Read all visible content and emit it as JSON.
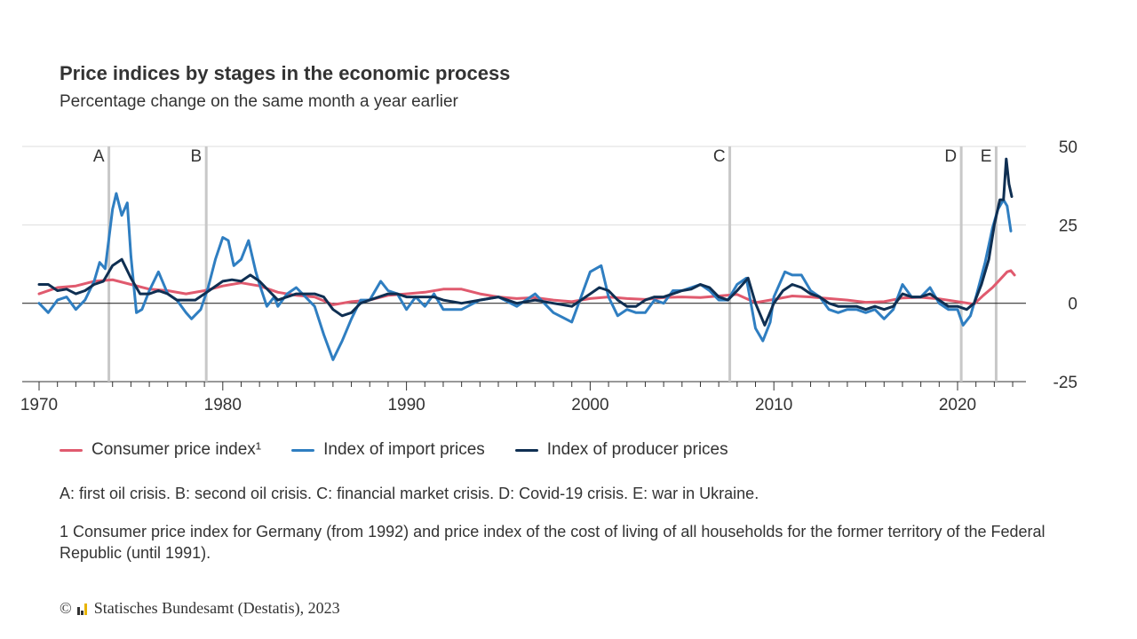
{
  "title": "Price indices by stages in the economic process",
  "subtitle": "Percentage change on the same month a year earlier",
  "legend": [
    {
      "label": "Consumer price index¹",
      "color": "#e05a6e"
    },
    {
      "label": "Index of import prices",
      "color": "#2f7ec1"
    },
    {
      "label": "Index of producer prices",
      "color": "#0f2f52"
    }
  ],
  "note": "A: first oil crisis. B: second oil crisis. C: financial market crisis. D: Covid-19 crisis. E: war in Ukraine.",
  "footnote": "1 Consumer price index for Germany (from 1992) and price index of the cost of living of all households for the former territory of the Federal Republic (until 1991).",
  "source": {
    "copyright": "©",
    "text": "Statisches Bundesamt (Destatis), 2023"
  },
  "chart_data": {
    "type": "line",
    "title": "Price indices by stages in the economic process",
    "ylabel": "Percentage change on the same month a year earlier",
    "xlim": [
      1970,
      2023
    ],
    "ylim": [
      -25,
      50
    ],
    "x_ticks": [
      1970,
      1980,
      1990,
      2000,
      2010,
      2020
    ],
    "y_ticks": [
      -25,
      0,
      25,
      50
    ],
    "events": [
      {
        "label": "A",
        "x": 1973.8
      },
      {
        "label": "B",
        "x": 1979.1
      },
      {
        "label": "C",
        "x": 2007.6
      },
      {
        "label": "D",
        "x": 2020.2
      },
      {
        "label": "E",
        "x": 2022.1
      }
    ],
    "series": [
      {
        "name": "Consumer price index¹",
        "color": "#e05a6e",
        "points": [
          [
            1970,
            3
          ],
          [
            1971,
            5
          ],
          [
            1972,
            5.5
          ],
          [
            1973,
            7
          ],
          [
            1974,
            7.5
          ],
          [
            1975,
            6
          ],
          [
            1976,
            4.5
          ],
          [
            1977,
            4
          ],
          [
            1978,
            3
          ],
          [
            1979,
            4
          ],
          [
            1980,
            5.5
          ],
          [
            1981,
            6.5
          ],
          [
            1982,
            5.5
          ],
          [
            1983,
            3.5
          ],
          [
            1984,
            2.5
          ],
          [
            1985,
            2
          ],
          [
            1986,
            -0.5
          ],
          [
            1987,
            0.5
          ],
          [
            1988,
            1
          ],
          [
            1989,
            2.5
          ],
          [
            1990,
            3
          ],
          [
            1991,
            3.5
          ],
          [
            1992,
            4.5
          ],
          [
            1993,
            4.5
          ],
          [
            1994,
            3
          ],
          [
            1995,
            2
          ],
          [
            1996,
            1.5
          ],
          [
            1997,
            1.8
          ],
          [
            1998,
            1
          ],
          [
            1999,
            0.5
          ],
          [
            2000,
            1.5
          ],
          [
            2001,
            2
          ],
          [
            2002,
            1.5
          ],
          [
            2003,
            1.2
          ],
          [
            2004,
            1.8
          ],
          [
            2005,
            2
          ],
          [
            2006,
            1.8
          ],
          [
            2007,
            2.3
          ],
          [
            2008,
            2.8
          ],
          [
            2009,
            0.2
          ],
          [
            2010,
            1.2
          ],
          [
            2011,
            2.3
          ],
          [
            2012,
            2
          ],
          [
            2013,
            1.5
          ],
          [
            2014,
            1
          ],
          [
            2015,
            0.3
          ],
          [
            2016,
            0.5
          ],
          [
            2017,
            1.7
          ],
          [
            2018,
            1.9
          ],
          [
            2019,
            1.4
          ],
          [
            2020,
            0.5
          ],
          [
            2020.9,
            -0.3
          ],
          [
            2021.4,
            2.5
          ],
          [
            2021.9,
            5
          ],
          [
            2022.3,
            7.5
          ],
          [
            2022.7,
            10
          ],
          [
            2022.9,
            10.4
          ],
          [
            2023.1,
            9
          ]
        ]
      },
      {
        "name": "Index of import prices",
        "color": "#2f7ec1",
        "points": [
          [
            1970,
            0
          ],
          [
            1970.5,
            -3
          ],
          [
            1971,
            1
          ],
          [
            1971.5,
            2
          ],
          [
            1972,
            -2
          ],
          [
            1972.5,
            1
          ],
          [
            1973,
            7
          ],
          [
            1973.3,
            13
          ],
          [
            1973.6,
            11
          ],
          [
            1974,
            30
          ],
          [
            1974.2,
            35
          ],
          [
            1974.5,
            28
          ],
          [
            1974.8,
            32
          ],
          [
            1975,
            15
          ],
          [
            1975.3,
            -3
          ],
          [
            1975.6,
            -2
          ],
          [
            1976,
            4
          ],
          [
            1976.5,
            10
          ],
          [
            1977,
            3
          ],
          [
            1977.5,
            1
          ],
          [
            1978,
            -3
          ],
          [
            1978.3,
            -5
          ],
          [
            1978.8,
            -2
          ],
          [
            1979.2,
            5
          ],
          [
            1979.6,
            14
          ],
          [
            1980,
            21
          ],
          [
            1980.3,
            20
          ],
          [
            1980.6,
            12
          ],
          [
            1981,
            14
          ],
          [
            1981.4,
            20
          ],
          [
            1981.8,
            10
          ],
          [
            1982,
            6
          ],
          [
            1982.4,
            -1
          ],
          [
            1982.8,
            2
          ],
          [
            1983,
            -1
          ],
          [
            1983.5,
            3
          ],
          [
            1984,
            5
          ],
          [
            1984.5,
            2
          ],
          [
            1985,
            -1
          ],
          [
            1985.5,
            -10
          ],
          [
            1986,
            -18
          ],
          [
            1986.5,
            -12
          ],
          [
            1987,
            -5
          ],
          [
            1987.5,
            1
          ],
          [
            1988,
            1
          ],
          [
            1988.6,
            7
          ],
          [
            1989,
            4
          ],
          [
            1989.5,
            3
          ],
          [
            1990,
            -2
          ],
          [
            1990.5,
            2
          ],
          [
            1991,
            -1
          ],
          [
            1991.5,
            3
          ],
          [
            1992,
            -2
          ],
          [
            1993,
            -2
          ],
          [
            1994,
            1
          ],
          [
            1995,
            2
          ],
          [
            1996,
            -1
          ],
          [
            1997,
            3
          ],
          [
            1998,
            -3
          ],
          [
            1999,
            -6
          ],
          [
            1999.5,
            2
          ],
          [
            2000,
            10
          ],
          [
            2000.6,
            12
          ],
          [
            2001,
            2
          ],
          [
            2001.5,
            -4
          ],
          [
            2002,
            -2
          ],
          [
            2002.5,
            -3
          ],
          [
            2003,
            -3
          ],
          [
            2003.5,
            1
          ],
          [
            2004,
            0
          ],
          [
            2004.5,
            4
          ],
          [
            2005,
            4
          ],
          [
            2005.5,
            5
          ],
          [
            2006,
            6
          ],
          [
            2006.5,
            4
          ],
          [
            2007,
            1
          ],
          [
            2007.5,
            1
          ],
          [
            2008,
            6
          ],
          [
            2008.5,
            8
          ],
          [
            2009,
            -8
          ],
          [
            2009.4,
            -12
          ],
          [
            2009.8,
            -6
          ],
          [
            2010,
            2
          ],
          [
            2010.6,
            10
          ],
          [
            2011,
            9
          ],
          [
            2011.5,
            9
          ],
          [
            2012,
            4
          ],
          [
            2012.5,
            2
          ],
          [
            2013,
            -2
          ],
          [
            2013.5,
            -3
          ],
          [
            2014,
            -2
          ],
          [
            2014.5,
            -2
          ],
          [
            2015,
            -3
          ],
          [
            2015.5,
            -2
          ],
          [
            2016,
            -5
          ],
          [
            2016.5,
            -2
          ],
          [
            2017,
            6
          ],
          [
            2017.5,
            2
          ],
          [
            2018,
            2
          ],
          [
            2018.5,
            5
          ],
          [
            2019,
            0
          ],
          [
            2019.5,
            -2
          ],
          [
            2020,
            -2
          ],
          [
            2020.3,
            -7
          ],
          [
            2020.7,
            -4
          ],
          [
            2021,
            2
          ],
          [
            2021.5,
            13
          ],
          [
            2021.9,
            24
          ],
          [
            2022.2,
            30
          ],
          [
            2022.5,
            33
          ],
          [
            2022.7,
            31
          ],
          [
            2022.9,
            23
          ]
        ]
      },
      {
        "name": "Index of producer prices",
        "color": "#0f2f52",
        "points": [
          [
            1970,
            6
          ],
          [
            1970.5,
            6
          ],
          [
            1971,
            4
          ],
          [
            1971.5,
            4.5
          ],
          [
            1972,
            3
          ],
          [
            1972.5,
            4
          ],
          [
            1973,
            6
          ],
          [
            1973.5,
            7
          ],
          [
            1974,
            12
          ],
          [
            1974.5,
            14
          ],
          [
            1975,
            8
          ],
          [
            1975.5,
            3
          ],
          [
            1976,
            3
          ],
          [
            1976.5,
            4
          ],
          [
            1977,
            3
          ],
          [
            1977.5,
            1
          ],
          [
            1978,
            1
          ],
          [
            1978.5,
            1
          ],
          [
            1979,
            3
          ],
          [
            1979.5,
            5
          ],
          [
            1980,
            7
          ],
          [
            1980.5,
            7.5
          ],
          [
            1981,
            7
          ],
          [
            1981.5,
            9
          ],
          [
            1982,
            7
          ],
          [
            1982.5,
            4
          ],
          [
            1983,
            1
          ],
          [
            1983.5,
            2
          ],
          [
            1984,
            3
          ],
          [
            1984.5,
            3
          ],
          [
            1985,
            3
          ],
          [
            1985.5,
            2
          ],
          [
            1986,
            -2
          ],
          [
            1986.5,
            -4
          ],
          [
            1987,
            -3
          ],
          [
            1987.5,
            0
          ],
          [
            1988,
            1
          ],
          [
            1988.5,
            2
          ],
          [
            1989,
            3
          ],
          [
            1989.5,
            3
          ],
          [
            1990,
            2
          ],
          [
            1990.5,
            2
          ],
          [
            1991,
            2
          ],
          [
            1991.5,
            2
          ],
          [
            1992,
            1
          ],
          [
            1993,
            0
          ],
          [
            1994,
            1
          ],
          [
            1995,
            2
          ],
          [
            1996,
            0
          ],
          [
            1997,
            1
          ],
          [
            1998,
            0
          ],
          [
            1999,
            -1
          ],
          [
            2000,
            3
          ],
          [
            2000.5,
            5
          ],
          [
            2001,
            4
          ],
          [
            2001.5,
            1
          ],
          [
            2002,
            -1
          ],
          [
            2002.5,
            -1
          ],
          [
            2003,
            1
          ],
          [
            2003.5,
            2
          ],
          [
            2004,
            2
          ],
          [
            2004.5,
            3
          ],
          [
            2005,
            4
          ],
          [
            2005.5,
            4.5
          ],
          [
            2006,
            6
          ],
          [
            2006.5,
            5
          ],
          [
            2007,
            2
          ],
          [
            2007.5,
            1
          ],
          [
            2008,
            4
          ],
          [
            2008.6,
            8
          ],
          [
            2009,
            0
          ],
          [
            2009.5,
            -7
          ],
          [
            2010,
            0
          ],
          [
            2010.5,
            4
          ],
          [
            2011,
            6
          ],
          [
            2011.5,
            5
          ],
          [
            2012,
            3
          ],
          [
            2012.5,
            2
          ],
          [
            2013,
            0
          ],
          [
            2013.5,
            -1
          ],
          [
            2014,
            -1
          ],
          [
            2014.5,
            -1
          ],
          [
            2015,
            -2
          ],
          [
            2015.5,
            -1
          ],
          [
            2016,
            -2
          ],
          [
            2016.5,
            -1
          ],
          [
            2017,
            3
          ],
          [
            2017.5,
            2
          ],
          [
            2018,
            2
          ],
          [
            2018.5,
            3
          ],
          [
            2019,
            1
          ],
          [
            2019.5,
            -1
          ],
          [
            2020,
            -1
          ],
          [
            2020.5,
            -2
          ],
          [
            2020.9,
            0
          ],
          [
            2021.3,
            6
          ],
          [
            2021.7,
            14
          ],
          [
            2022,
            25
          ],
          [
            2022.3,
            33
          ],
          [
            2022.5,
            33
          ],
          [
            2022.65,
            46
          ],
          [
            2022.8,
            38
          ],
          [
            2022.95,
            34
          ]
        ]
      }
    ]
  }
}
